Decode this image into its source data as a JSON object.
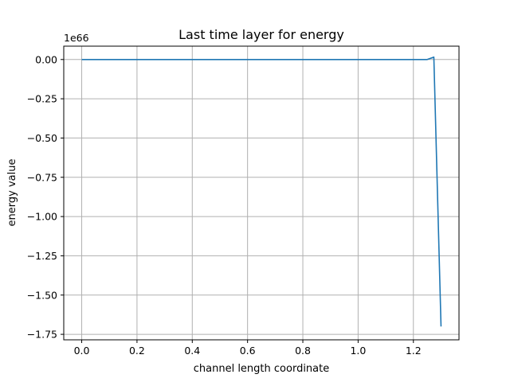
{
  "chart_data": {
    "type": "line",
    "title": "Last time layer for energy",
    "xlabel": "channel length coordinate",
    "ylabel": "energy value",
    "y_offset_label": "1e66",
    "y_scale": 1e+66,
    "xlim": [
      -0.065,
      1.365
    ],
    "ylim": [
      -1.785,
      0.085
    ],
    "grid": true,
    "x_ticks": [
      0.0,
      0.2,
      0.4,
      0.6,
      0.8,
      1.0,
      1.2
    ],
    "x_tick_labels": [
      "0.0",
      "0.2",
      "0.4",
      "0.6",
      "0.8",
      "1.0",
      "1.2"
    ],
    "y_ticks": [
      0.0,
      -0.25,
      -0.5,
      -0.75,
      -1.0,
      -1.25,
      -1.5,
      -1.75
    ],
    "y_tick_labels": [
      "0.00",
      "−0.25",
      "−0.50",
      "−0.75",
      "−1.00",
      "−1.25",
      "−1.50",
      "−1.75"
    ],
    "series": [
      {
        "color": "#1f77b4",
        "x": [
          0.0,
          0.2,
          0.4,
          0.6,
          0.8,
          1.0,
          1.2,
          1.25,
          1.274,
          1.3
        ],
        "y": [
          0.0,
          0.0,
          0.0,
          0.0,
          0.0,
          0.0,
          0.0,
          0.0,
          0.015,
          -1.7
        ]
      }
    ]
  }
}
